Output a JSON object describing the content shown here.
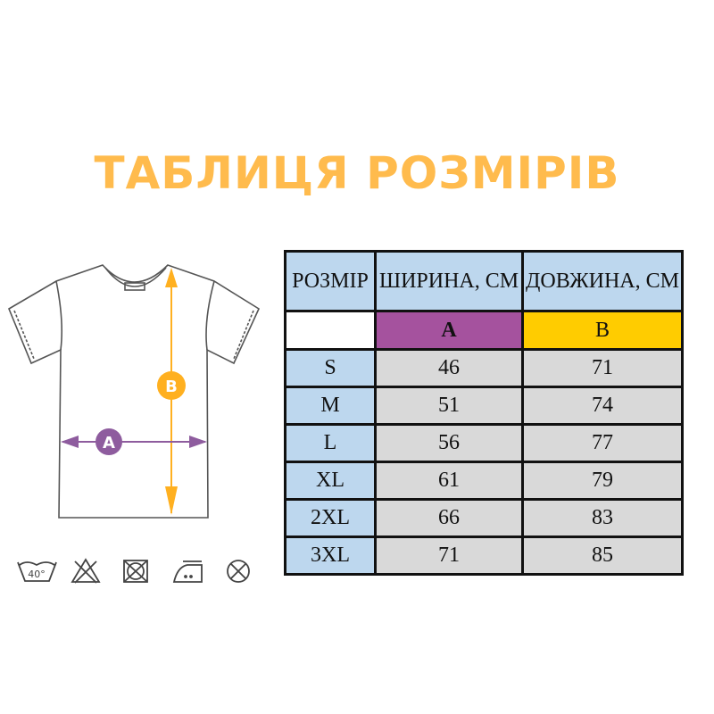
{
  "title": "ТАБЛИЦЯ РОЗМІРІВ",
  "diagram": {
    "label_a": "A",
    "label_b": "B",
    "color_a": "#8E5C9E",
    "color_b": "#FFB020"
  },
  "care_icons": [
    "wash-40-icon",
    "no-bleach-icon",
    "no-tumble-dry-icon",
    "iron-medium-icon",
    "no-dry-clean-icon"
  ],
  "care_label_40": "40°",
  "table": {
    "headers": [
      "РОЗМІР",
      "ШИРИНА, СМ",
      "ДОВЖИНА, СМ"
    ],
    "sub_headers": [
      "",
      "A",
      "B"
    ],
    "sub_colors": [
      "#FFFFFF",
      "#A5529E",
      "#FFCC00"
    ],
    "rows": [
      [
        "S",
        "46",
        "71"
      ],
      [
        "M",
        "51",
        "74"
      ],
      [
        "L",
        "56",
        "77"
      ],
      [
        "XL",
        "61",
        "79"
      ],
      [
        "2XL",
        "66",
        "83"
      ],
      [
        "3XL",
        "71",
        "85"
      ]
    ]
  }
}
